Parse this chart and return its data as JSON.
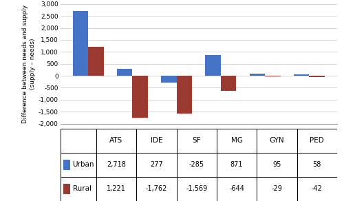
{
  "categories": [
    "ATS",
    "IDE",
    "SF",
    "MG",
    "GYN",
    "PED"
  ],
  "urban_values": [
    2718,
    277,
    -285,
    871,
    95,
    58
  ],
  "rural_values": [
    1221,
    -1762,
    -1569,
    -644,
    -29,
    -42
  ],
  "urban_color": "#4472C4",
  "rural_color": "#9B3A31",
  "ylabel": "Difference between needs and supply\n(supply – needs)",
  "ylim": [
    -2000,
    3000
  ],
  "yticks": [
    -2000,
    -1500,
    -1000,
    -500,
    0,
    500,
    1000,
    1500,
    2000,
    2500,
    3000
  ],
  "ytick_labels": [
    "-2,000",
    "-1,500",
    "-1,000",
    "-500",
    "0",
    "500",
    "1,000",
    "1,500",
    "2,000",
    "2,500",
    "3,000"
  ],
  "legend_labels": [
    "Urban",
    "Rural"
  ],
  "table_urban": [
    "2,718",
    "277",
    "-285",
    "871",
    "95",
    "58"
  ],
  "table_rural": [
    "1,221",
    "-1,762",
    "-1,569",
    "-644",
    "-29",
    "-42"
  ],
  "bar_width": 0.35,
  "background_color": "#FFFFFF",
  "grid_color": "#D0D0D0"
}
